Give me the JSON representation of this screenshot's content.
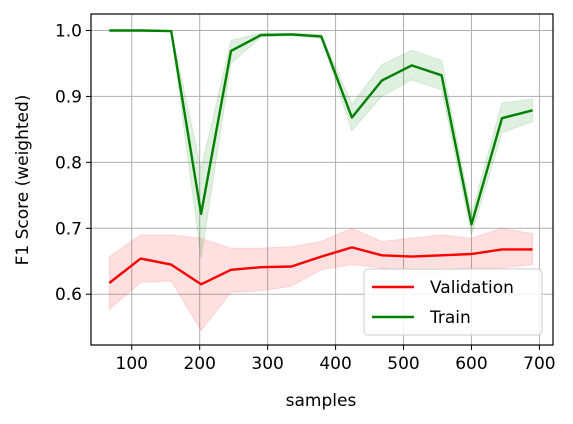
{
  "chart_data": {
    "type": "line",
    "title": "",
    "xlabel": "samples",
    "ylabel": "F1 Score (weighted)",
    "xlim": [
      40,
      720
    ],
    "ylim": [
      0.523,
      1.025
    ],
    "xticks": [
      100,
      200,
      300,
      400,
      500,
      600,
      700
    ],
    "yticks": [
      0.6,
      0.7,
      0.8,
      0.9,
      1.0
    ],
    "ytick_labels": [
      "0.6",
      "0.7",
      "0.8",
      "0.9",
      "1.0"
    ],
    "grid": true,
    "legend": {
      "position": "bottom-right",
      "frame": true
    },
    "x": [
      67,
      113,
      158,
      202,
      246,
      290,
      335,
      379,
      424,
      468,
      512,
      556,
      600,
      645,
      690
    ],
    "series": [
      {
        "name": "Validation",
        "color": "#ff0000",
        "values": [
          0.617,
          0.654,
          0.645,
          0.615,
          0.637,
          0.641,
          0.642,
          0.657,
          0.671,
          0.659,
          0.657,
          0.659,
          0.661,
          0.668,
          0.668
        ],
        "lower": [
          0.577,
          0.618,
          0.62,
          0.545,
          0.603,
          0.605,
          0.612,
          0.637,
          0.645,
          0.64,
          0.633,
          0.633,
          0.64,
          0.64,
          0.645
        ],
        "upper": [
          0.657,
          0.69,
          0.69,
          0.685,
          0.67,
          0.67,
          0.672,
          0.68,
          0.7,
          0.68,
          0.685,
          0.69,
          0.685,
          0.7,
          0.692
        ]
      },
      {
        "name": "Train",
        "color": "#008000",
        "values": [
          1.0,
          1.0,
          0.999,
          0.722,
          0.969,
          0.993,
          0.994,
          0.991,
          0.868,
          0.924,
          0.947,
          0.932,
          0.706,
          0.867,
          0.879
        ],
        "lower": [
          0.999,
          0.999,
          0.998,
          0.655,
          0.95,
          0.99,
          0.992,
          0.988,
          0.848,
          0.9,
          0.925,
          0.91,
          0.69,
          0.845,
          0.862
        ],
        "upper": [
          1.0,
          1.0,
          1.0,
          0.79,
          0.985,
          0.996,
          0.996,
          0.994,
          0.888,
          0.948,
          0.97,
          0.955,
          0.722,
          0.89,
          0.896
        ]
      }
    ]
  }
}
